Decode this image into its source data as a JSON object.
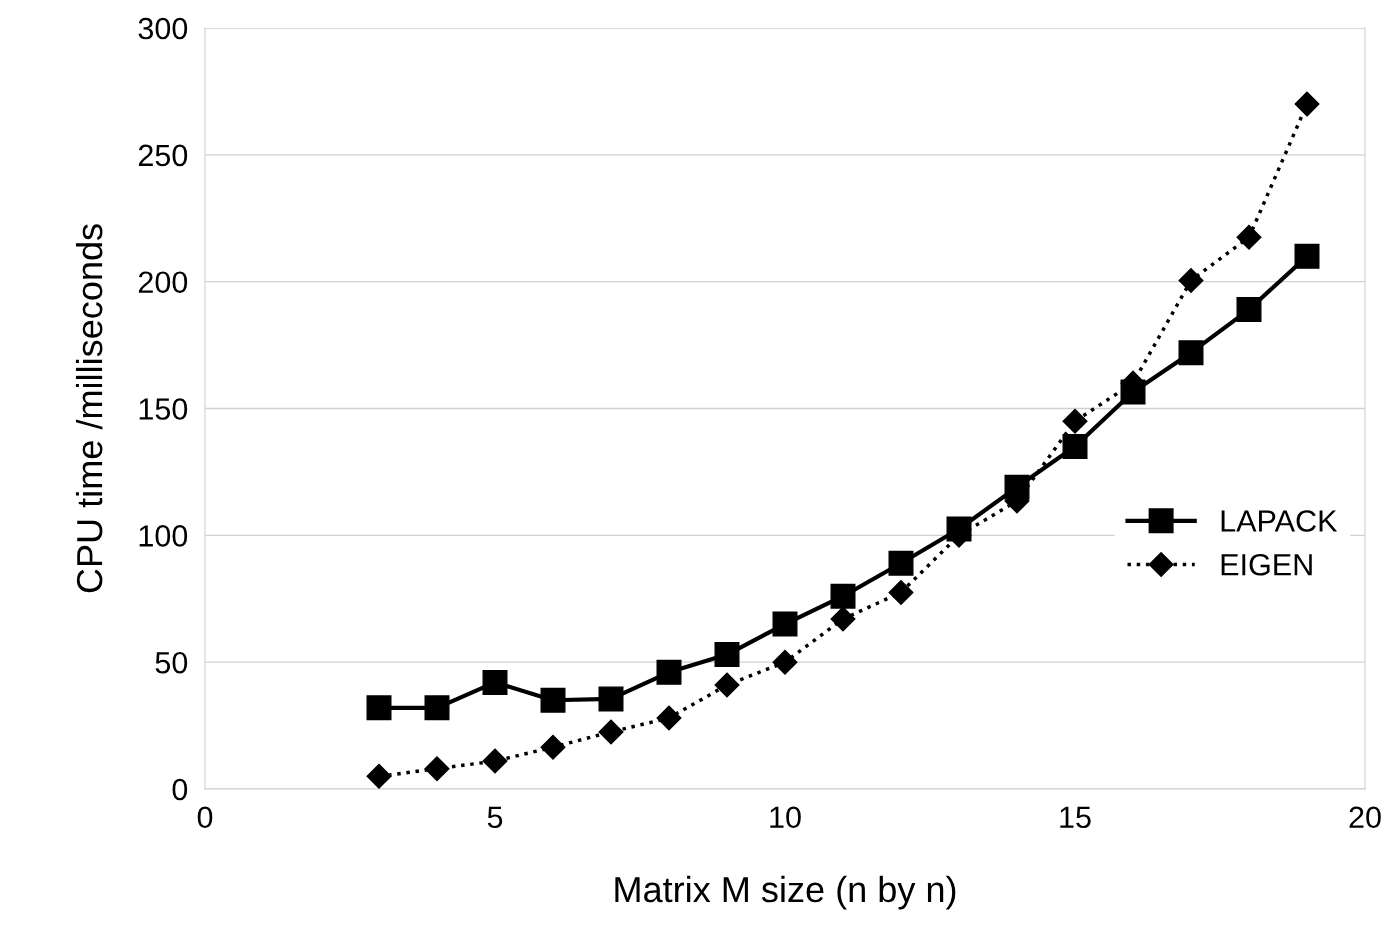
{
  "chart_data": {
    "type": "line",
    "xlabel": "Matrix M size (n by n)",
    "ylabel": "CPU time /milliseconds",
    "x": [
      3,
      4,
      5,
      6,
      7,
      8,
      9,
      10,
      11,
      12,
      13,
      14,
      15,
      16,
      17,
      18,
      19
    ],
    "series": [
      {
        "name": "LAPACK",
        "color": "#000000",
        "marker": "square",
        "line_style": "solid",
        "values": [
          32,
          32,
          42,
          35,
          35.5,
          46,
          53,
          65,
          76,
          89,
          102.5,
          119,
          135,
          156.5,
          172,
          189,
          210
        ]
      },
      {
        "name": "EIGEN",
        "color": "#000000",
        "marker": "diamond",
        "line_style": "dotted",
        "values": [
          5,
          8,
          11,
          16.5,
          22.5,
          28,
          41,
          50,
          67,
          77.5,
          100,
          113.5,
          145,
          160,
          200.5,
          217.5,
          270
        ]
      }
    ],
    "xlim": [
      0,
      20
    ],
    "xticks": [
      0,
      5,
      10,
      15,
      20
    ],
    "ylim": [
      0,
      300
    ],
    "yticks": [
      0,
      50,
      100,
      150,
      200,
      250,
      300
    ],
    "grid": "y",
    "legend": "right"
  }
}
